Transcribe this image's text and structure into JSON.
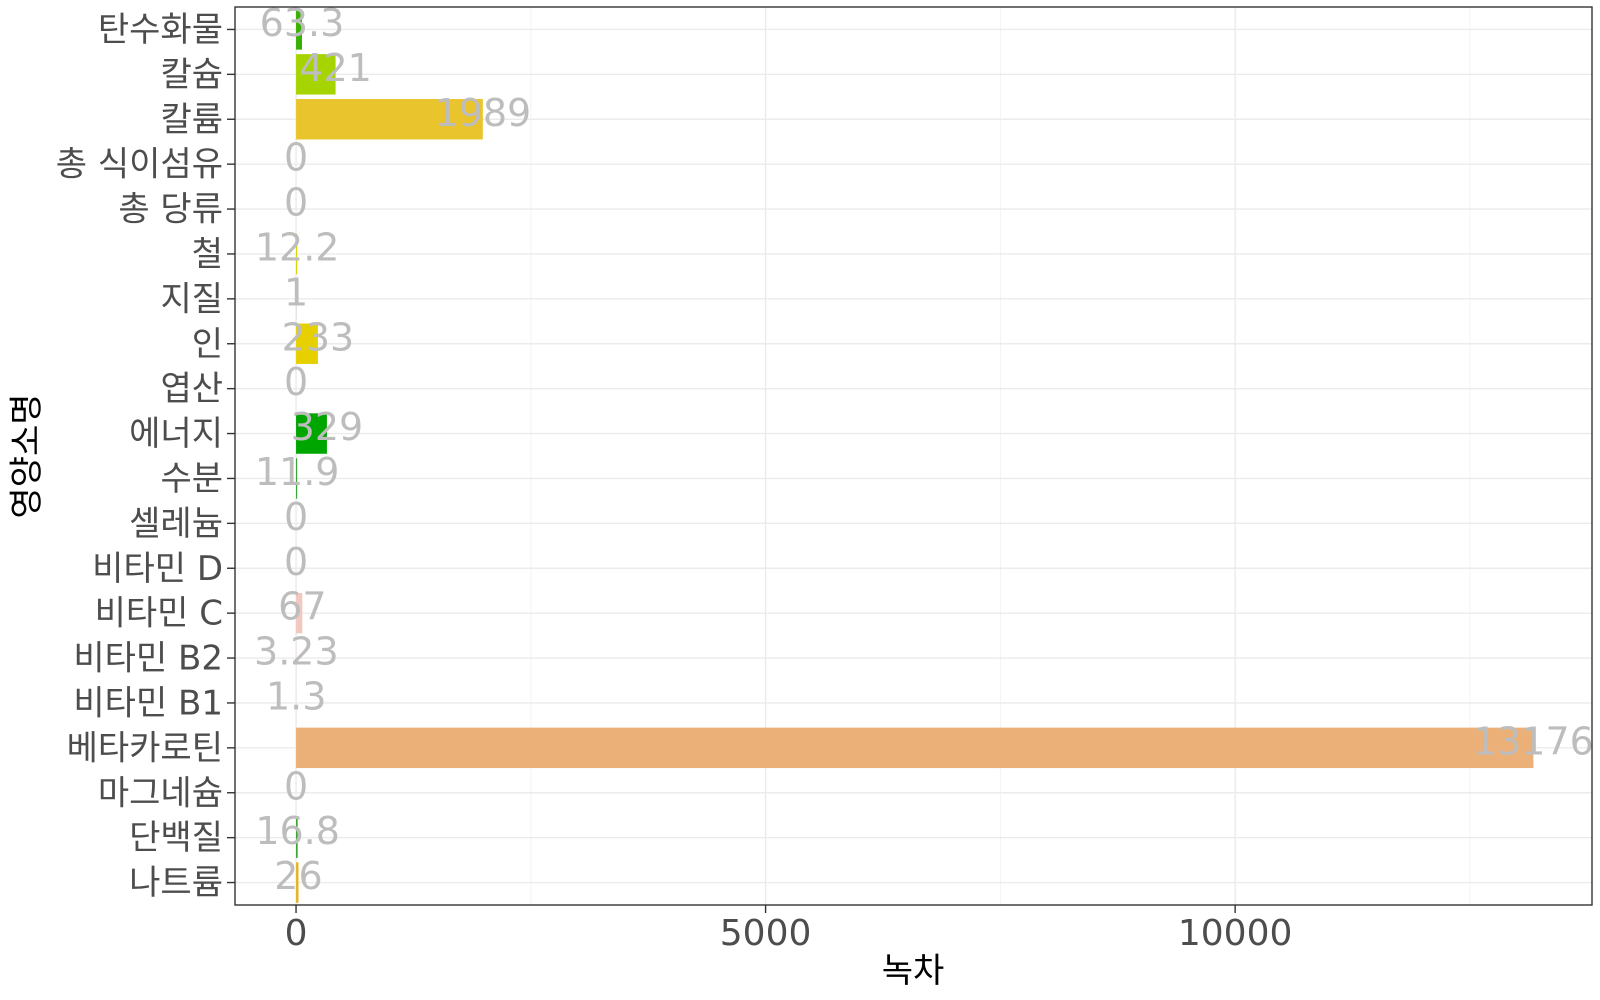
{
  "chart_data": {
    "type": "bar",
    "orientation": "horizontal",
    "xlabel": "녹차",
    "ylabel": "영양소명",
    "xlim": [
      -650,
      13800
    ],
    "x_ticks": [
      0,
      5000,
      10000
    ],
    "x_tick_labels": [
      "0",
      "5000",
      "10000"
    ],
    "grid": true,
    "categories": [
      "탄수화물",
      "칼슘",
      "칼륨",
      "총 식이섬유",
      "총 당류",
      "철",
      "지질",
      "인",
      "엽산",
      "에너지",
      "수분",
      "셀레늄",
      "비타민 D",
      "비타민 C",
      "비타민 B2",
      "비타민 B1",
      "베타카로틴",
      "마그네슘",
      "단백질",
      "나트륨"
    ],
    "values": [
      63.3,
      421,
      1989,
      0,
      0,
      12.2,
      1,
      233,
      0,
      329,
      11.9,
      0,
      0,
      67,
      3.23,
      1.3,
      13176,
      0,
      16.8,
      26
    ],
    "value_labels": [
      "63.3",
      "421",
      "1989",
      "0",
      "0",
      "12.2",
      "1",
      "233",
      "0",
      "329",
      "11.9",
      "0",
      "0",
      "67",
      "3.23",
      "1.3",
      "13176",
      "0",
      "16.8",
      "26"
    ],
    "colors": [
      "#38b000",
      "#a6d400",
      "#e9c42c",
      "#c9c9c9",
      "#c9c9c9",
      "#d8d400",
      "#2f9e2f",
      "#e6d000",
      "#c9c9c9",
      "#00a600",
      "#31a12e",
      "#c9c9c9",
      "#c9c9c9",
      "#f2c9c0",
      "#f0d6d0",
      "#f2cdc4",
      "#ebb077",
      "#c9c9c9",
      "#33a02c",
      "#e6b422"
    ]
  }
}
